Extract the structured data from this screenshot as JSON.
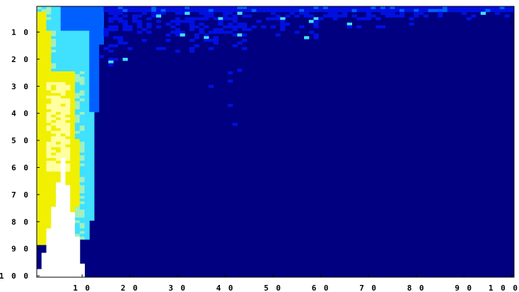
{
  "chart_data": {
    "type": "heatmap",
    "title": "",
    "xlabel": "",
    "ylabel": "",
    "x_range": [
      1,
      100
    ],
    "y_range": [
      1,
      100
    ],
    "y_direction": "top-to-bottom",
    "grid": false,
    "legend": "none",
    "x_ticks": [
      {
        "value": 10,
        "label": "1 0"
      },
      {
        "value": 20,
        "label": "2 0"
      },
      {
        "value": 30,
        "label": "3 0"
      },
      {
        "value": 40,
        "label": "4 0"
      },
      {
        "value": 50,
        "label": "5 0"
      },
      {
        "value": 60,
        "label": "6 0"
      },
      {
        "value": 70,
        "label": "7 0"
      },
      {
        "value": 80,
        "label": "8 0"
      },
      {
        "value": 90,
        "label": "9 0"
      },
      {
        "value": 100,
        "label": "1 0 0"
      }
    ],
    "y_ticks": [
      {
        "value": 10,
        "label": "1 0"
      },
      {
        "value": 20,
        "label": "2 0"
      },
      {
        "value": 30,
        "label": "3 0"
      },
      {
        "value": 40,
        "label": "4 0"
      },
      {
        "value": 50,
        "label": "5 0"
      },
      {
        "value": 60,
        "label": "6 0"
      },
      {
        "value": 70,
        "label": "7 0"
      },
      {
        "value": 80,
        "label": "8 0"
      },
      {
        "value": 90,
        "label": "9 0"
      },
      {
        "value": 100,
        "label": "1 0 0"
      }
    ],
    "colormap": [
      "#000080",
      "#0010e0",
      "#0060ff",
      "#40e0ff",
      "#a0f0c0",
      "#f0f000",
      "#ffffa0",
      "#ffffff"
    ],
    "regions": [
      {
        "level": 7,
        "x": [
          1,
          10
        ],
        "y": [
          57,
          100
        ],
        "shape": "triangle-up"
      },
      {
        "level": 6,
        "x": [
          1,
          8
        ],
        "y": [
          28,
          60
        ]
      },
      {
        "level": 5,
        "x": [
          1,
          10
        ],
        "y": [
          5,
          88
        ]
      },
      {
        "level": 4,
        "x": [
          5,
          12
        ],
        "y": [
          10,
          40
        ]
      },
      {
        "level": 3,
        "x": [
          9,
          13
        ],
        "y": [
          15,
          85
        ]
      },
      {
        "level": 2,
        "x": [
          5,
          14
        ],
        "y": [
          1,
          25
        ]
      },
      {
        "level": 1,
        "x": [
          14,
          100
        ],
        "y": [
          1,
          8
        ],
        "sparse": true
      }
    ]
  }
}
